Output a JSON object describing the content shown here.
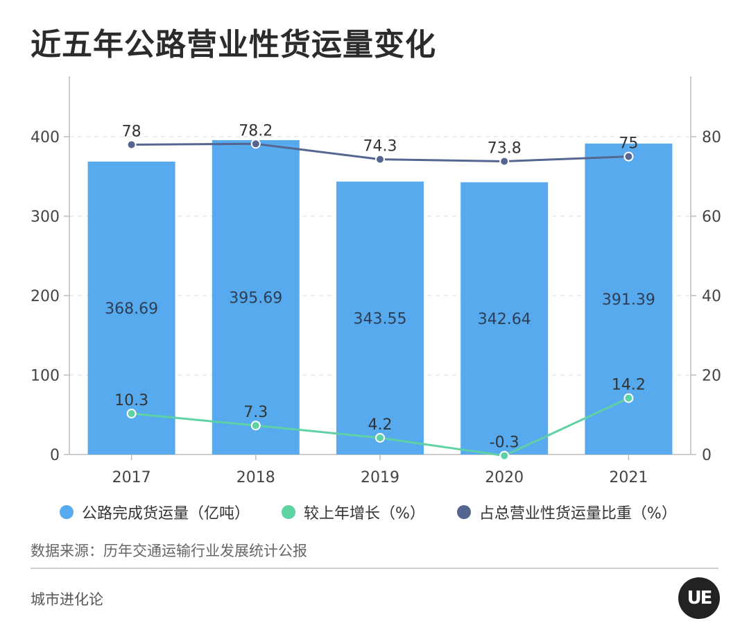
{
  "title": "近五年公路营业性货运量变化",
  "source": "数据来源：历年交通运输行业发展统计公报",
  "brand": "城市进化论",
  "logo_text": "UE",
  "colors": {
    "bar": "#57aaee",
    "growth": "#5ed2a4",
    "share": "#54658f",
    "grid": "#dddddd",
    "axis": "#bbbbbb"
  },
  "legend": [
    {
      "label": "公路完成货运量（亿吨）",
      "color": "#57aaee"
    },
    {
      "label": "较上年增长（%）",
      "color": "#5ed2a4"
    },
    {
      "label": "占总营业性货运量比重（%）",
      "color": "#54658f"
    }
  ],
  "chart_data": {
    "type": "bar",
    "categories": [
      "2017",
      "2018",
      "2019",
      "2020",
      "2021"
    ],
    "series": [
      {
        "name": "公路完成货运量（亿吨）",
        "type": "bar",
        "axis": "left",
        "values": [
          368.69,
          395.69,
          343.55,
          342.64,
          391.39
        ]
      },
      {
        "name": "较上年增长（%）",
        "type": "line",
        "axis": "right",
        "values": [
          10.3,
          7.3,
          4.2,
          -0.3,
          14.2
        ]
      },
      {
        "name": "占总营业性货运量比重（%）",
        "type": "line",
        "axis": "right",
        "values": [
          78,
          78.2,
          74.3,
          73.8,
          75
        ]
      }
    ],
    "ylim_left": [
      0,
      400
    ],
    "yticks_left": [
      0,
      100,
      200,
      300,
      400
    ],
    "ylim_right": [
      0,
      80
    ],
    "yticks_right": [
      0,
      20,
      40,
      60,
      80
    ],
    "grid": true,
    "legend_position": "bottom"
  }
}
